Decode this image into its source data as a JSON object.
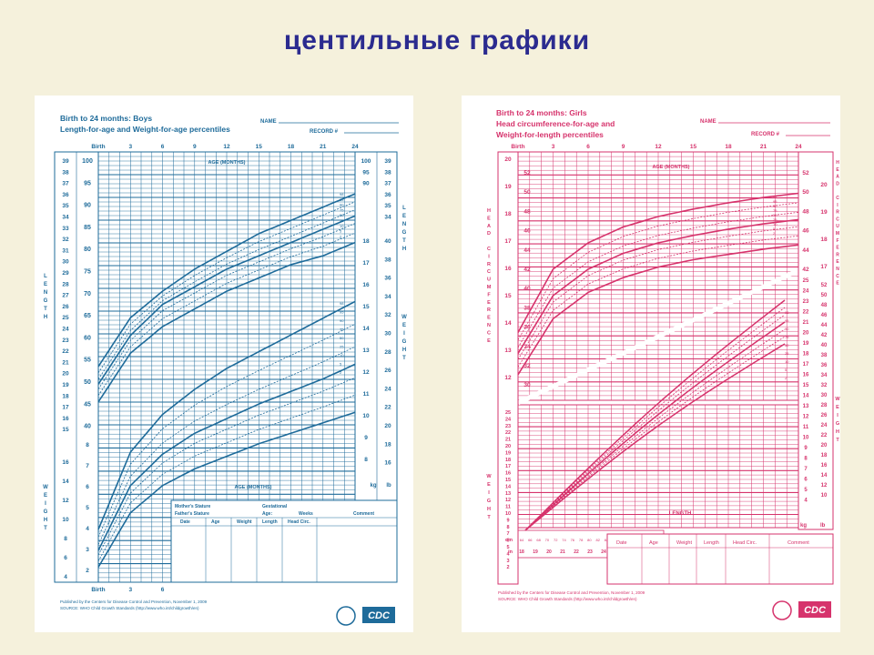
{
  "slide": {
    "title": "центильные графики"
  },
  "boys": {
    "title_lines": [
      "Birth to 24 months: Boys",
      "Length-for-age and Weight-for-age percentiles"
    ],
    "name_label": "NAME",
    "record_label": "RECORD #",
    "months_ticks": [
      "Birth",
      "3",
      "6",
      "9",
      "12",
      "15",
      "18",
      "21",
      "24"
    ],
    "age_label": "AGE (MONTHS)",
    "cm_ticks_length": [
      "100",
      "95",
      "90",
      "85",
      "80",
      "75",
      "70",
      "65",
      "60",
      "55",
      "50",
      "45",
      "40"
    ],
    "in_ticks_length": [
      "39",
      "38",
      "37",
      "36",
      "35",
      "34",
      "33",
      "32",
      "31",
      "30",
      "29",
      "28",
      "27",
      "26",
      "25",
      "24",
      "23",
      "22",
      "21",
      "20",
      "19",
      "18",
      "17",
      "16",
      "15"
    ],
    "side_length": "LENGTH",
    "side_weight": "WEIGHT",
    "kg_ticks": [
      "18",
      "17",
      "16",
      "15",
      "14",
      "13",
      "12",
      "11",
      "10",
      "9",
      "8",
      "7",
      "6",
      "5",
      "4",
      "3",
      "2"
    ],
    "lb_ticks": [
      "40",
      "38",
      "36",
      "34",
      "32",
      "30",
      "28",
      "26",
      "24",
      "22",
      "20",
      "18",
      "16",
      "14",
      "12",
      "10",
      "8",
      "6"
    ],
    "bottom_months": [
      "Birth",
      "3",
      "6"
    ],
    "stature_box": {
      "mother": "Mother's Stature",
      "father": "Father's Stature",
      "gestational": "Gestational",
      "age": "Age:",
      "weeks": "Weeks",
      "comment": "Comment",
      "cols": [
        "Date",
        "Age",
        "Weight",
        "Length",
        "Head Circ."
      ]
    },
    "footer": [
      "Published by the Centers for Disease Control and Prevention, November 1, 2009",
      "SOURCE: WHO Child Growth Standards (http://www.who.int/childgrowth/en)"
    ],
    "logo_text": "CDC"
  },
  "girls": {
    "title_lines": [
      "Birth to 24 months: Girls",
      "Head circumference-for-age and",
      "Weight-for-length percentiles"
    ],
    "name_label": "NAME",
    "record_label": "RECORD #",
    "months_ticks": [
      "Birth",
      "3",
      "6",
      "9",
      "12",
      "15",
      "18",
      "21",
      "24"
    ],
    "age_label": "AGE (MONTHS)",
    "side_head": "HEAD CIRCUMFERENCE",
    "side_weight": "WEIGHT",
    "cm_head": [
      "52",
      "50",
      "48",
      "46",
      "44",
      "42",
      "40",
      "38",
      "36",
      "34",
      "32",
      "30"
    ],
    "in_head": [
      "20",
      "19",
      "18",
      "17",
      "16",
      "15",
      "14",
      "13",
      "12"
    ],
    "kg_ticks": [
      "25",
      "24",
      "23",
      "22",
      "21",
      "20",
      "19",
      "18",
      "17",
      "16",
      "15",
      "14",
      "13",
      "12",
      "11",
      "10",
      "9",
      "8",
      "7",
      "6",
      "5",
      "4",
      "3",
      "2"
    ],
    "lb_ticks": [
      "52",
      "50",
      "48",
      "46",
      "44",
      "42",
      "40",
      "38",
      "36",
      "34",
      "32",
      "30",
      "28",
      "26",
      "24",
      "22",
      "20",
      "18",
      "16",
      "14",
      "12",
      "10",
      "8",
      "6"
    ],
    "length_label": "LENGTH",
    "length_cm": [
      "64",
      "66",
      "68",
      "70",
      "72",
      "74",
      "76",
      "78",
      "80",
      "82",
      "84",
      "86",
      "88",
      "90",
      "92",
      "94",
      "96",
      "98",
      "100",
      "102",
      "104",
      "106",
      "108",
      "110"
    ],
    "length_in": [
      "18",
      "19",
      "20",
      "21",
      "22",
      "23",
      "24",
      "25",
      "26",
      "27",
      "28",
      "29",
      "30",
      "31",
      "32",
      "33",
      "34",
      "35",
      "36",
      "37",
      "38",
      "39",
      "40",
      "41",
      "42",
      "43"
    ],
    "cols": [
      "Date",
      "Age",
      "Weight",
      "Length",
      "Head Circ.",
      "Comment"
    ],
    "footer": [
      "Published by the Centers for Disease Control and Prevention, November 1, 2009",
      "SOURCE: WHO Child Growth Standards (http://www.who.int/childgrowth/en)"
    ],
    "logo_text": "CDC"
  },
  "colors": {
    "boys": "#1e6b9a",
    "girls": "#d6336c",
    "title": "#2b2b8f",
    "background": "#f5f1dc"
  },
  "chart_data": [
    {
      "type": "line",
      "title": "Birth to 24 months: Boys Length-for-age and Weight-for-age percentiles",
      "xlabel": "AGE (MONTHS)",
      "x": [
        0,
        3,
        6,
        9,
        12,
        15,
        18,
        21,
        24
      ],
      "series": [
        {
          "name": "Length-for-age 98",
          "values": [
            54,
            65,
            71,
            76,
            80,
            84,
            87,
            90,
            93
          ]
        },
        {
          "name": "Length-for-age 50",
          "values": [
            50,
            61,
            68,
            72,
            76,
            79,
            82,
            85,
            88
          ]
        },
        {
          "name": "Length-for-age 2",
          "values": [
            46,
            57,
            63,
            67,
            71,
            74,
            77,
            79,
            82
          ]
        },
        {
          "name": "Weight-for-age 98",
          "values": [
            4.3,
            8.0,
            9.8,
            11.0,
            12.0,
            12.8,
            13.6,
            14.4,
            15.2
          ]
        },
        {
          "name": "Weight-for-age 50",
          "values": [
            3.3,
            6.4,
            7.9,
            8.9,
            9.6,
            10.3,
            10.9,
            11.5,
            12.2
          ]
        },
        {
          "name": "Weight-for-age 2",
          "values": [
            2.5,
            5.1,
            6.4,
            7.2,
            7.8,
            8.4,
            8.9,
            9.4,
            9.9
          ]
        }
      ]
    },
    {
      "type": "line",
      "title": "Birth to 24 months: Girls Head circumference-for-age and Weight-for-length percentiles",
      "xlabel": "AGE (MONTHS)",
      "x": [
        0,
        3,
        6,
        9,
        12,
        15,
        18,
        21,
        24
      ],
      "series": [
        {
          "name": "Head circumference 98",
          "values": [
            36.0,
            42.0,
            44.5,
            46.0,
            47.0,
            47.7,
            48.3,
            48.8,
            49.2
          ]
        },
        {
          "name": "Head circumference 50",
          "values": [
            34.0,
            39.5,
            42.0,
            43.5,
            44.5,
            45.2,
            45.8,
            46.3,
            46.7
          ]
        },
        {
          "name": "Head circumference 2",
          "values": [
            32.0,
            37.3,
            39.8,
            41.2,
            42.2,
            42.9,
            43.4,
            43.9,
            44.3
          ]
        }
      ]
    }
  ]
}
